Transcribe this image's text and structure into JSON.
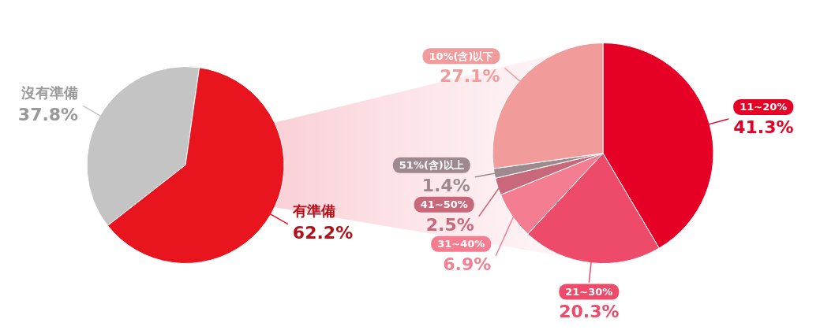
{
  "chart_data": [
    {
      "type": "pie",
      "categories": [
        "沒有準備",
        "有準備"
      ],
      "values": [
        37.8,
        62.2
      ],
      "value_labels": [
        "37.8%",
        "62.2%"
      ],
      "colors": [
        "#c4c4c4",
        "#e8151f"
      ],
      "data_labels": true
    },
    {
      "type": "pie",
      "categories": [
        "11~20%",
        "21~30%",
        "31~40%",
        "41~50%",
        "51%(含)以上",
        "10%(含)以下"
      ],
      "values": [
        41.3,
        20.3,
        6.9,
        2.5,
        1.4,
        27.1
      ],
      "value_labels": [
        "41.3%",
        "20.3%",
        "6.9%",
        "2.5%",
        "1.4%",
        "27.1%"
      ],
      "colors": [
        "#e60026",
        "#ee4a6a",
        "#f47d92",
        "#c9687a",
        "#9e8a8e",
        "#f29b9b"
      ],
      "data_labels": true
    }
  ]
}
